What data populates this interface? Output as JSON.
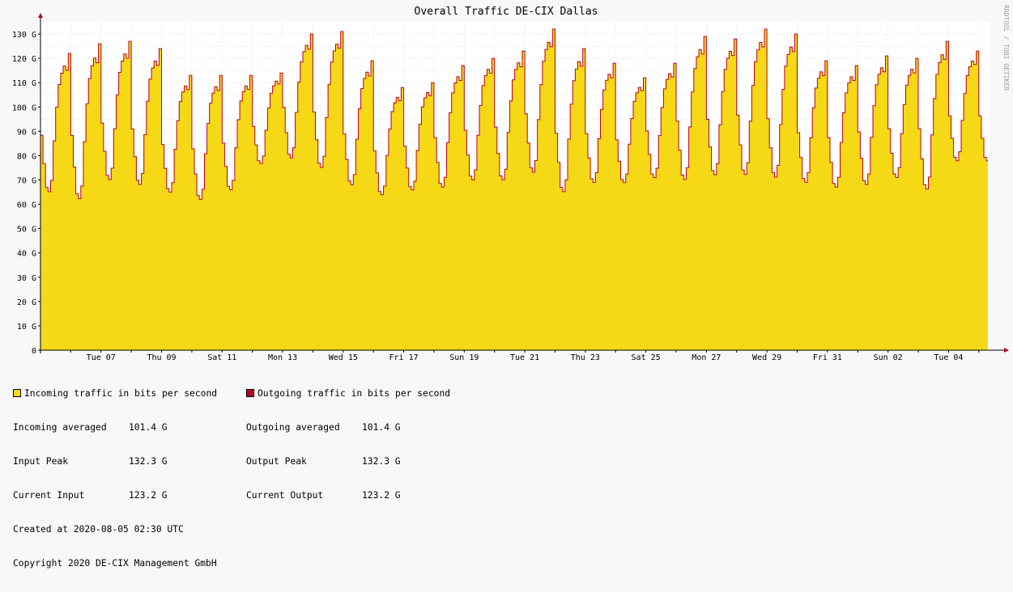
{
  "chart_data": {
    "type": "area",
    "title": "Overall Traffic DE-CIX Dallas",
    "watermark": "RRDTOOL / TOBI OETIKER",
    "ylim": [
      0,
      135
    ],
    "yticks": [
      0,
      10,
      20,
      30,
      40,
      50,
      60,
      70,
      80,
      90,
      100,
      110,
      120,
      130
    ],
    "ytick_labels": [
      "0",
      "10 G",
      "20 G",
      "30 G",
      "40 G",
      "50 G",
      "60 G",
      "70 G",
      "80 G",
      "90 G",
      "100 G",
      "110 G",
      "120 G",
      "130 G"
    ],
    "x_days": 31.3,
    "xtick_days": [
      2,
      4,
      6,
      8,
      10,
      12,
      14,
      16,
      18,
      20,
      22,
      24,
      26,
      28,
      30
    ],
    "xtick_labels": [
      "Tue 07",
      "Thu 09",
      "Sat 11",
      "Mon 13",
      "Wed 15",
      "Fri 17",
      "Sun 19",
      "Tue 21",
      "Thu 23",
      "Sat 25",
      "Mon 27",
      "Wed 29",
      "Fri 31",
      "Sun 02",
      "Tue 04"
    ],
    "grid": true,
    "colors": {
      "incoming": "#F5D816",
      "outgoing": "#B8001E",
      "grid": "#D0D0D0",
      "canvas": "#FFFFFF",
      "background": "#F8F8F8"
    },
    "daily_min": [
      64,
      61,
      69,
      67,
      64,
      61,
      65,
      76,
      78,
      74,
      67,
      63,
      65,
      66,
      69,
      69,
      72,
      64,
      68,
      68,
      70,
      69,
      71,
      71,
      70,
      68,
      66,
      67,
      70,
      65,
      77
    ],
    "daily_peak": [
      122,
      126,
      127,
      124,
      113,
      113,
      113,
      114,
      130,
      131,
      119,
      108,
      110,
      117,
      120,
      123,
      132,
      124,
      118,
      112,
      118,
      129,
      128,
      132,
      130,
      119,
      117,
      121,
      120,
      127,
      123
    ],
    "series": [
      {
        "name": "Incoming traffic in bits per second",
        "color": "#F5D816",
        "style": "area"
      },
      {
        "name": "Outgoing traffic in bits per second",
        "color": "#B8001E",
        "style": "line"
      }
    ]
  },
  "legend": {
    "incoming_label": "Incoming traffic in bits per second",
    "outgoing_label": "Outgoing traffic in bits per second",
    "incoming_averaged_label": "Incoming averaged",
    "incoming_averaged_value": "101.4 G",
    "input_peak_label": "Input Peak",
    "input_peak_value": "132.3 G",
    "current_input_label": "Current Input",
    "current_input_value": "123.2 G",
    "outgoing_averaged_label": "Outgoing averaged",
    "outgoing_averaged_value": "101.4 G",
    "output_peak_label": "Output Peak",
    "output_peak_value": "132.3 G",
    "current_output_label": "Current Output",
    "current_output_value": "123.2 G",
    "created": "Created at 2020-08-05 02:30 UTC",
    "copyright": "Copyright 2020 DE-CIX Management GmbH"
  }
}
